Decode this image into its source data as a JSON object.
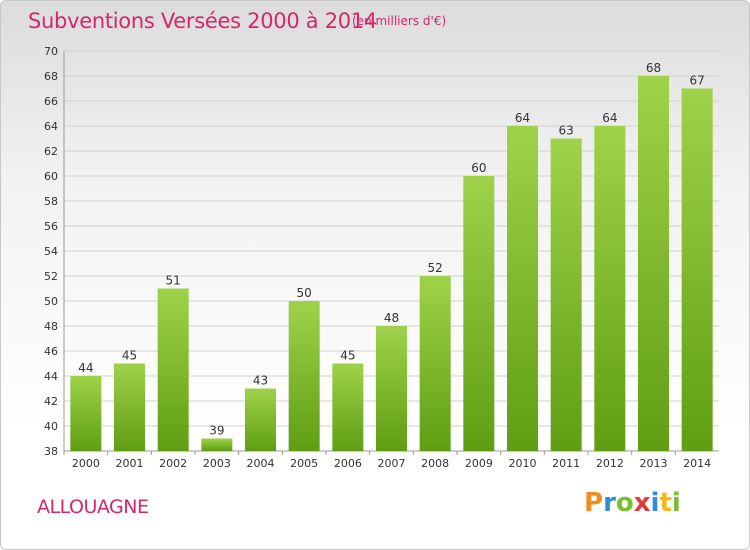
{
  "title": "Subventions Versées 2000 à 2014",
  "unit_note": "(en milliers d'€)",
  "commune": "ALLOUAGNE",
  "brand": {
    "letters": [
      {
        "ch": "P",
        "color": "#f28c1e"
      },
      {
        "ch": "r",
        "color": "#2e8fd6"
      },
      {
        "ch": "o",
        "color": "#7bbf2a"
      },
      {
        "ch": "x",
        "color": "#e23b3b"
      },
      {
        "ch": "i",
        "color": "#2e8fd6"
      },
      {
        "ch": "t",
        "color": "#f2b81e"
      },
      {
        "ch": "i",
        "color": "#7bbf2a"
      }
    ]
  },
  "colors": {
    "bar_top": "#9fd24a",
    "bar_bottom": "#5f9e14",
    "accent": "#d6266e",
    "grid": "#d0d0d0",
    "axis_text": "#333333"
  },
  "chart_data": {
    "type": "bar",
    "categories": [
      "2000",
      "2001",
      "2002",
      "2003",
      "2004",
      "2005",
      "2006",
      "2007",
      "2008",
      "2009",
      "2010",
      "2011",
      "2012",
      "2013",
      "2014"
    ],
    "values": [
      44,
      45,
      51,
      39,
      43,
      50,
      45,
      48,
      52,
      60,
      64,
      63,
      64,
      68,
      67
    ],
    "ylim": [
      38,
      70
    ],
    "yticks": [
      38,
      40,
      42,
      44,
      46,
      48,
      50,
      52,
      54,
      56,
      58,
      60,
      62,
      64,
      66,
      68,
      70
    ],
    "grid": true,
    "legend": "none"
  }
}
